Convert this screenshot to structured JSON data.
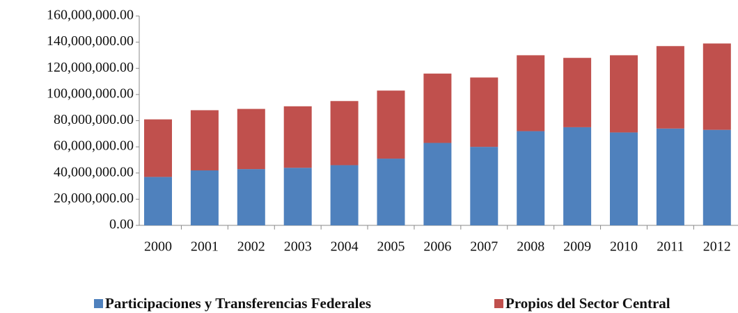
{
  "chart_data": {
    "type": "stacked_bar",
    "categories": [
      "2000",
      "2001",
      "2002",
      "2003",
      "2004",
      "2005",
      "2006",
      "2007",
      "2008",
      "2009",
      "2010",
      "2011",
      "2012"
    ],
    "series": [
      {
        "name": "Participaciones y Transferencias Federales",
        "color": "#4f81bd",
        "values": [
          37000000,
          42000000,
          43000000,
          44000000,
          46000000,
          51000000,
          63000000,
          60000000,
          72000000,
          75000000,
          71000000,
          74000000,
          73000000
        ]
      },
      {
        "name": "Propios del Sector Central",
        "color": "#c0504d",
        "values": [
          44000000,
          46000000,
          46000000,
          47000000,
          49000000,
          52000000,
          53000000,
          53000000,
          58000000,
          53000000,
          59000000,
          63000000,
          66000000
        ]
      }
    ],
    "ylim": [
      0,
      160000000
    ],
    "yticks": [
      {
        "value": 0,
        "label": "0.00"
      },
      {
        "value": 20000000,
        "label": "20,000,000.00"
      },
      {
        "value": 40000000,
        "label": "40,000,000.00"
      },
      {
        "value": 60000000,
        "label": "60,000,000.00"
      },
      {
        "value": 80000000,
        "label": "80,000,000.00"
      },
      {
        "value": 100000000,
        "label": "100,000,000.00"
      },
      {
        "value": 120000000,
        "label": "120,000,000.00"
      },
      {
        "value": 140000000,
        "label": "140,000,000.00"
      },
      {
        "value": 160000000,
        "label": "160,000,000.00"
      }
    ],
    "legend": "bottom"
  }
}
